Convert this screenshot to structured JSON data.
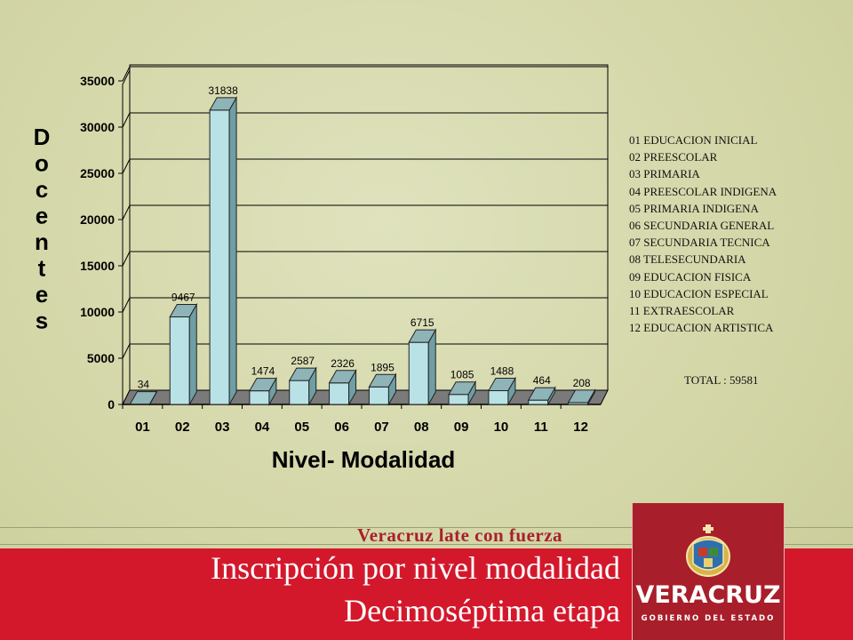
{
  "chart_data": {
    "type": "bar",
    "categories": [
      "01",
      "02",
      "03",
      "04",
      "05",
      "06",
      "07",
      "08",
      "09",
      "10",
      "11",
      "12"
    ],
    "values": [
      34,
      9467,
      31838,
      1474,
      2587,
      2326,
      1895,
      6715,
      1085,
      1488,
      464,
      208
    ],
    "data_labels": [
      "34",
      "9467",
      "31838",
      "1474",
      "2587",
      "2326",
      "1895",
      "6715",
      "1085",
      "1488",
      "464",
      "208"
    ],
    "yticks": [
      "0",
      "5000",
      "10000",
      "15000",
      "20000",
      "25000",
      "30000",
      "35000"
    ],
    "ylim": [
      0,
      35000
    ],
    "xlabel": "Nivel- Modalidad",
    "ylabel": "Docentes",
    "grid": true,
    "bar_color": "#b9e2e6",
    "floor_color": "#7a7a7a"
  },
  "legend": [
    "01 EDUCACION INICIAL",
    "02 PREESCOLAR",
    "03 PRIMARIA",
    "04 PREESCOLAR INDIGENA",
    "05 PRIMARIA INDIGENA",
    "06 SECUNDARIA GENERAL",
    "07 SECUNDARIA TECNICA",
    "08 TELESECUNDARIA",
    "09 EDUCACION FISICA",
    "10 EDUCACION ESPECIAL",
    "11 EXTRAESCOLAR",
    "12 EDUCACION ARTISTICA"
  ],
  "total": "TOTAL : 59581",
  "footer": {
    "slogan": "Veracruz late con fuerza",
    "title_line1": "Inscripción  por nivel modalidad",
    "title_line2": "Decimoséptima etapa"
  },
  "logo": {
    "name": "VERACRUZ",
    "subtitle": "GOBIERNO DEL ESTADO",
    "icon": "coat-of-arms-icon"
  },
  "colors": {
    "footer_red": "#d3182c",
    "logo_red": "#a81e2a",
    "slogan": "#a8202c"
  }
}
